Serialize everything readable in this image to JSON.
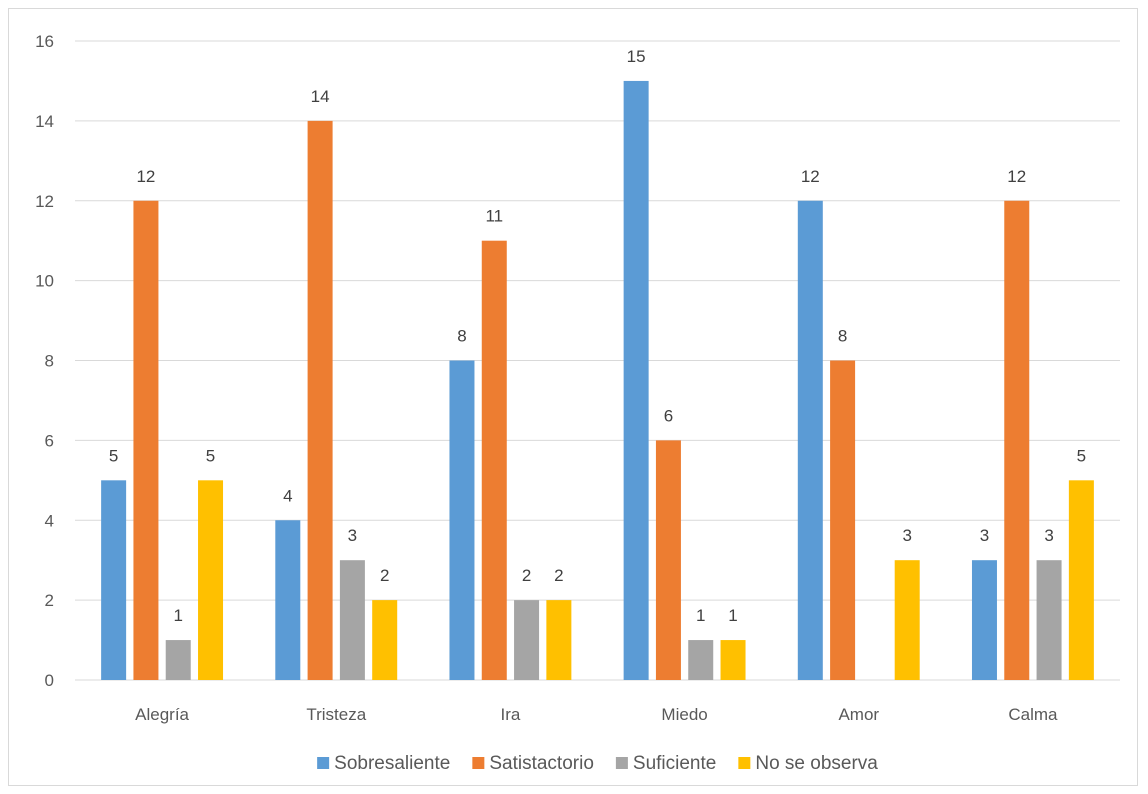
{
  "chart_data": {
    "type": "bar",
    "title": "",
    "xlabel": "",
    "ylabel": "",
    "ylim": [
      0,
      16
    ],
    "yticks": [
      0,
      2,
      4,
      6,
      8,
      10,
      12,
      14,
      16
    ],
    "grid": true,
    "legend_position": "bottom",
    "categories": [
      "Alegría",
      "Tristeza",
      "Ira",
      "Miedo",
      "Amor",
      "Calma"
    ],
    "series": [
      {
        "name": "Sobresaliente",
        "color": "#5b9bd5",
        "values": [
          5,
          4,
          8,
          15,
          12,
          3
        ]
      },
      {
        "name": "Satistactorio",
        "color": "#ed7d31",
        "values": [
          12,
          14,
          11,
          6,
          8,
          12
        ]
      },
      {
        "name": "Suficiente",
        "color": "#a5a5a5",
        "values": [
          1,
          3,
          2,
          1,
          null,
          3
        ]
      },
      {
        "name": "No se observa",
        "color": "#ffc000",
        "values": [
          5,
          2,
          2,
          1,
          3,
          5
        ]
      }
    ]
  }
}
